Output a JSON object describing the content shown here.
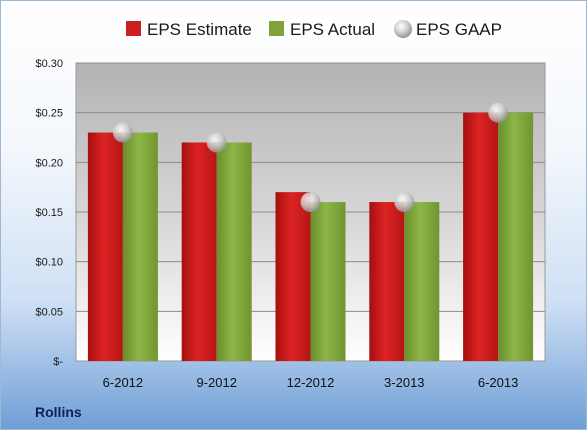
{
  "chart_data": {
    "type": "bar",
    "categories": [
      "6-2012",
      "9-2012",
      "12-2012",
      "3-2013",
      "6-2013"
    ],
    "series": [
      {
        "name": "EPS Estimate",
        "kind": "bar",
        "color": "#cc1f1f",
        "values": [
          0.23,
          0.22,
          0.17,
          0.16,
          0.25
        ]
      },
      {
        "name": "EPS Actual",
        "kind": "bar",
        "color": "#7fa33a",
        "values": [
          0.23,
          0.22,
          0.16,
          0.16,
          0.25
        ]
      },
      {
        "name": "EPS GAAP",
        "kind": "marker",
        "color": "#c8c8c8",
        "values": [
          0.23,
          0.22,
          0.16,
          0.16,
          0.25
        ]
      }
    ],
    "ylim": [
      0,
      0.3
    ],
    "yticks": [
      0,
      0.05,
      0.1,
      0.15,
      0.2,
      0.25,
      0.3
    ],
    "ytick_labels": [
      "$-",
      "$0.05",
      "$0.10",
      "$0.15",
      "$0.20",
      "$0.25",
      "$0.30"
    ],
    "grid": true,
    "legend": "top"
  },
  "company": "Rollins"
}
